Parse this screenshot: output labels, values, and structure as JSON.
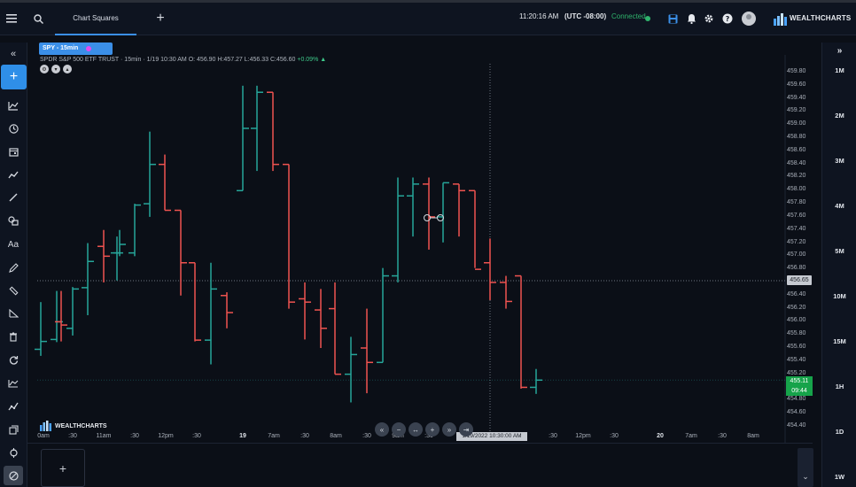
{
  "topbar": {
    "tab_label": "Chart Squares",
    "clock": "11:20:16 AM",
    "timezone": "(UTC -08:00)",
    "connection_status": "Connected",
    "logo_text": "WEALTHCHARTS"
  },
  "chart": {
    "symbol_pill": "SPY - 15min",
    "ohlc_prefix": "SPDR S&P 500 ETF TRUST  · 15min · 1/19 10:30 AM",
    "ohlc_o": "O: 456.90",
    "ohlc_h": "H:457.27",
    "ohlc_l": "L:456.33",
    "ohlc_c": "C:456.60",
    "ohlc_change": "+0.09%",
    "crosshair_price": "456.65",
    "current_price": "455.11",
    "countdown": "09:44",
    "crosshair_time": "1/19/2022 10:30:00 AM",
    "watermark": "WEALTHCHARTS",
    "price_axis": [
      "459.80",
      "459.60",
      "459.40",
      "459.20",
      "459.00",
      "458.80",
      "458.60",
      "458.40",
      "458.20",
      "458.00",
      "457.80",
      "457.60",
      "457.40",
      "457.20",
      "457.00",
      "456.80",
      "456.60",
      "456.40",
      "456.20",
      "456.00",
      "455.80",
      "455.60",
      "455.40",
      "455.20",
      "455.00",
      "454.80",
      "454.60",
      "454.40"
    ],
    "time_axis": [
      {
        "label": "0am",
        "bold": false
      },
      {
        "label": ":30",
        "bold": false
      },
      {
        "label": "11am",
        "bold": false
      },
      {
        "label": ":30",
        "bold": false
      },
      {
        "label": "12pm",
        "bold": false
      },
      {
        "label": ":30",
        "bold": false
      },
      {
        "label": "19",
        "bold": true
      },
      {
        "label": "7am",
        "bold": false
      },
      {
        "label": ":30",
        "bold": false
      },
      {
        "label": "8am",
        "bold": false
      },
      {
        "label": ":30",
        "bold": false
      },
      {
        "label": "9am",
        "bold": false
      },
      {
        "label": ":30",
        "bold": false
      },
      {
        "label": ":30",
        "bold": false
      },
      {
        "label": "12pm",
        "bold": false
      },
      {
        "label": ":30",
        "bold": false
      },
      {
        "label": "20",
        "bold": true
      },
      {
        "label": "7am",
        "bold": false
      },
      {
        "label": ":30",
        "bold": false
      },
      {
        "label": "8am",
        "bold": false
      }
    ],
    "up_color": "#26a69a",
    "down_color": "#ef5350"
  },
  "timeframes": [
    "1M",
    "2M",
    "3M",
    "4M",
    "5M",
    "10M",
    "15M",
    "1H",
    "1D",
    "1W"
  ],
  "chart_data": {
    "type": "ohlc",
    "bars": [
      {
        "o": 455.58,
        "h": 456.3,
        "l": 455.48,
        "c": 455.6
      },
      {
        "o": 455.73,
        "h": 456.1,
        "l": 455.7,
        "c": 455.98
      },
      {
        "o": 456.0,
        "h": 456.47,
        "l": 455.69,
        "c": 455.8
      },
      {
        "o": 456.0,
        "h": 456.02,
        "l": 455.85,
        "c": 455.98
      },
      {
        "o": 455.92,
        "h": 456.53,
        "l": 455.79,
        "c": 456.46
      },
      {
        "o": 456.92,
        "h": 457.18,
        "l": 456.1,
        "c": 456.94
      },
      {
        "o": 457.04,
        "h": 457.2,
        "l": 457.0,
        "c": 457.05
      },
      {
        "o": 457.19,
        "h": 457.4,
        "l": 456.1,
        "c": 457.2
      },
      {
        "o": 457.2,
        "h": 457.43,
        "l": 457.0,
        "c": 457.05
      },
      {
        "o": 457.12,
        "h": 457.56,
        "l": 456.74,
        "c": 457.06
      },
      {
        "o": 457.1,
        "h": 457.4,
        "l": 456.63,
        "c": 457.2
      },
      {
        "o": 457.12,
        "h": 457.24,
        "l": 456.95,
        "c": 457.09
      },
      {
        "o": 457.25,
        "h": 457.72,
        "l": 457.08,
        "c": 457.2
      },
      {
        "o": 457.82,
        "h": 458.2,
        "l": 457.1,
        "c": 457.8
      },
      {
        "o": 457.8,
        "h": 458.9,
        "l": 457.6,
        "c": 458.4
      },
      {
        "o": 458.6,
        "h": 458.48,
        "l": 458.3,
        "c": 458.4
      },
      {
        "o": 457.7,
        "h": 457.7,
        "l": 457.0,
        "c": 457.7
      },
      {
        "o": 456.94,
        "h": 456.94,
        "l": 456.4,
        "c": 456.9
      },
      {
        "o": 457.0,
        "h": 456.94,
        "l": 455.9,
        "c": 456.9
      },
      {
        "o": 455.8,
        "h": 456.05,
        "l": 455.7,
        "c": 455.8
      },
      {
        "o": 456.4,
        "h": 456.45,
        "l": 455.4,
        "c": 456.7
      },
      {
        "o": 456.14,
        "h": 456.3,
        "l": 456.1,
        "c": 456.14
      },
      {
        "o": 458.0,
        "h": 458.2,
        "l": 458.0,
        "c": 458.0
      },
      {
        "o": 458.9,
        "h": 459.6,
        "l": 458.0,
        "c": 458.95
      },
      {
        "o": 459.6,
        "h": 459.6,
        "l": 458.7,
        "c": 459.5
      },
      {
        "o": 459.5,
        "h": 459.5,
        "l": 458.3,
        "c": 458.4
      },
      {
        "o": 458.4,
        "h": 458.4,
        "l": 456.4,
        "c": 456.4
      },
      {
        "o": 456.56,
        "h": 456.56,
        "l": 455.87,
        "c": 456.36
      },
      {
        "o": 456.35,
        "h": 456.6,
        "l": 455.73,
        "c": 456.3
      },
      {
        "o": 456.18,
        "h": 456.5,
        "l": 455.6,
        "c": 456.2
      },
      {
        "o": 456.2,
        "h": 456.6,
        "l": 455.2,
        "c": 455.2
      },
      {
        "o": 455.4,
        "h": 455.77,
        "l": 454.77,
        "c": 455.6
      },
      {
        "o": 455.6,
        "h": 456.2,
        "l": 454.91,
        "c": 455.38
      },
      {
        "o": 455.38,
        "h": 456.82,
        "l": 455.38,
        "c": 456.82
      },
      {
        "o": 456.9,
        "h": 457.27,
        "l": 456.33,
        "c": 456.6
      },
      {
        "o": 456.7,
        "h": 458.2,
        "l": 456.6,
        "c": 457.9
      },
      {
        "o": 457.9,
        "h": 458.2,
        "l": 457.3,
        "c": 457.6
      },
      {
        "o": 457.6,
        "h": 458.1,
        "l": 457.1,
        "c": 457.6
      },
      {
        "o": 457.69,
        "h": 458.12,
        "l": 457.21,
        "c": 458.12
      },
      {
        "o": 458.12,
        "h": 458.1,
        "l": 457.63,
        "c": 458.08
      },
      {
        "o": 458.08,
        "h": 458.08,
        "l": 457.3,
        "c": 458.0
      },
      {
        "o": 457.5,
        "h": 457.4,
        "l": 456.82,
        "c": 456.8
      },
      {
        "o": 456.8,
        "h": 456.7,
        "l": 456.31,
        "c": 456.6
      },
      {
        "o": 456.6,
        "h": 456.8,
        "l": 456.2,
        "c": 456.5
      },
      {
        "o": 456.42,
        "h": 456.7,
        "l": 454.98,
        "c": 455.0
      },
      {
        "o": 455.0,
        "h": 455.28,
        "l": 454.9,
        "c": 455.11
      }
    ]
  }
}
